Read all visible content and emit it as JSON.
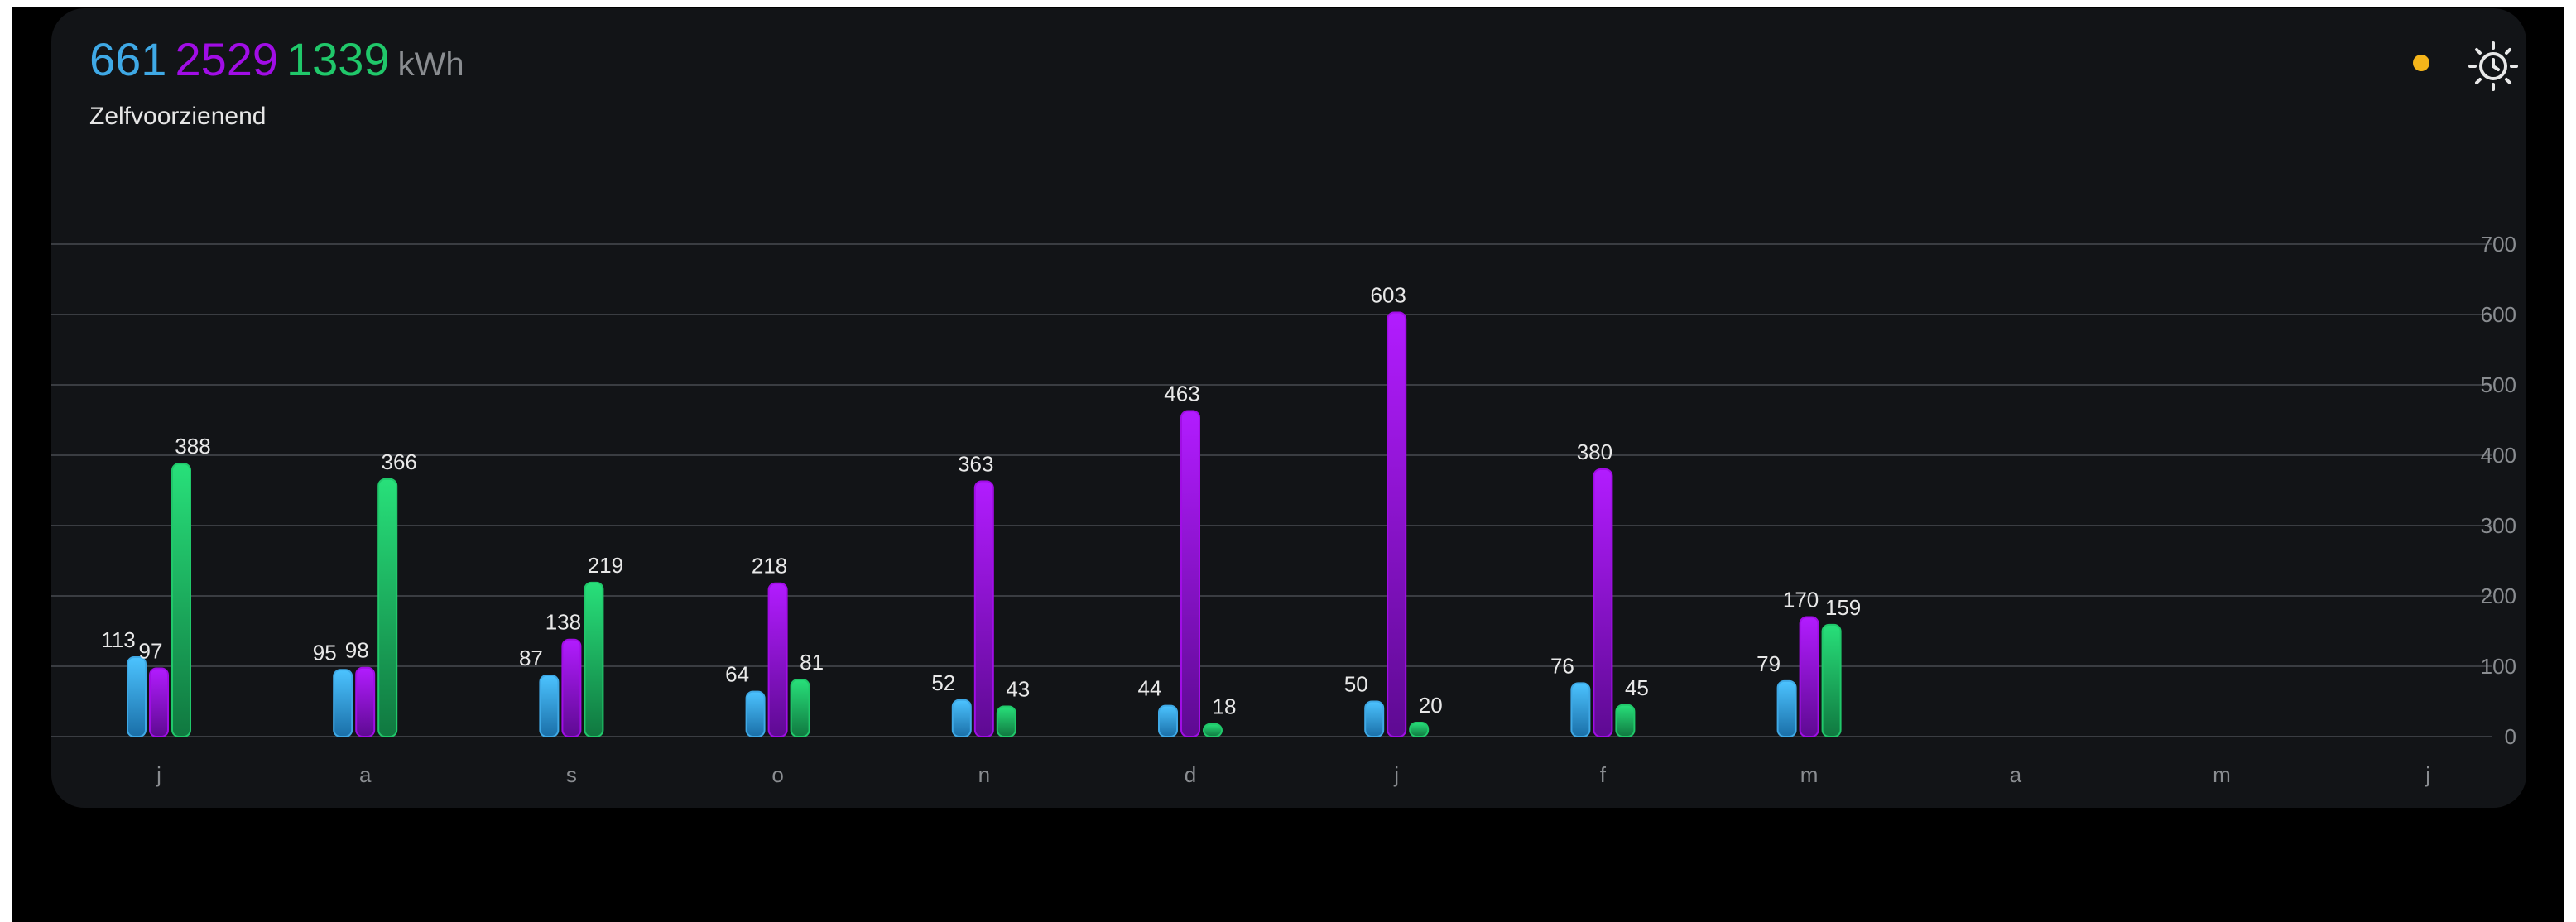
{
  "header": {
    "total_1": "661",
    "total_2": "2529",
    "total_3": "1339",
    "unit": "kWh",
    "subtitle": "Zelfvoorzienend"
  },
  "icons": {
    "status_dot": "status-dot-icon",
    "sun": "sun-clock-icon"
  },
  "colors": {
    "series_1": "#3fa9e6",
    "series_2": "#a10de6",
    "series_3": "#20c86a",
    "status_dot": "#f5b51a",
    "background": "#121417",
    "grid": "#3a3d42"
  },
  "chart_data": {
    "type": "bar",
    "categories": [
      "j",
      "a",
      "s",
      "o",
      "n",
      "d",
      "j",
      "f",
      "m",
      "a",
      "m",
      "j"
    ],
    "series": [
      {
        "values": [
          113,
          95,
          87,
          64,
          52,
          44,
          50,
          76,
          79,
          null,
          null,
          null
        ]
      },
      {
        "values": [
          97,
          98,
          138,
          218,
          363,
          463,
          603,
          380,
          170,
          null,
          null,
          null
        ]
      },
      {
        "values": [
          388,
          366,
          219,
          81,
          43,
          18,
          20,
          45,
          159,
          null,
          null,
          null
        ]
      }
    ],
    "yticks": [
      "0",
      "100",
      "200",
      "300",
      "400",
      "500",
      "600",
      "700"
    ],
    "ylim": [
      0,
      700
    ],
    "grid": true,
    "legend": "none"
  }
}
